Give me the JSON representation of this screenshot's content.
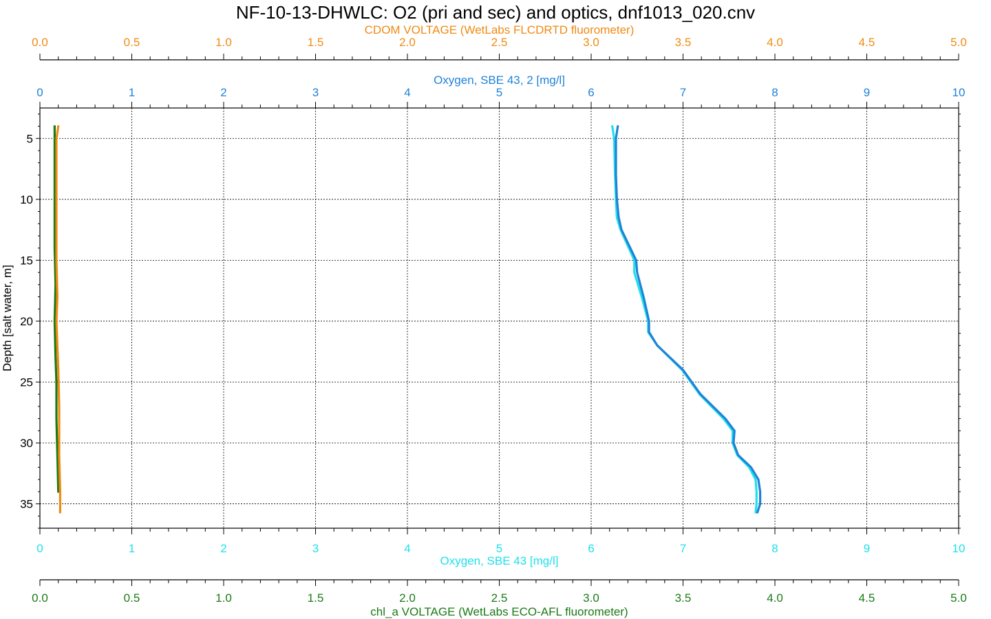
{
  "chart_data": {
    "type": "line",
    "title": "NF-10-13-DHWLC: O2 (pri and sec) and optics, dnf1013_020.cnv",
    "y_axis": {
      "label": "Depth [salt water, m]",
      "range": [
        2.5,
        37
      ],
      "inverted": true,
      "ticks": [
        5,
        10,
        15,
        20,
        25,
        30,
        35
      ]
    },
    "x_axes": [
      {
        "id": "cdom",
        "label": "CDOM VOLTAGE (WetLabs FLCDRTD fluorometer)",
        "position": "top-outer",
        "range": [
          0,
          5
        ],
        "ticks": [
          "0.0",
          "0.5",
          "1.0",
          "1.5",
          "2.0",
          "2.5",
          "3.0",
          "3.5",
          "4.0",
          "4.5",
          "5.0"
        ],
        "color": "#f08a12"
      },
      {
        "id": "oxy2",
        "label": "Oxygen, SBE 43, 2 [mg/l]",
        "position": "top-inner",
        "range": [
          0,
          10
        ],
        "ticks": [
          "0",
          "1",
          "2",
          "3",
          "4",
          "5",
          "6",
          "7",
          "8",
          "9",
          "10"
        ],
        "color": "#1f82d8"
      },
      {
        "id": "oxy1",
        "label": "Oxygen, SBE 43 [mg/l]",
        "position": "bottom-inner",
        "range": [
          0,
          10
        ],
        "ticks": [
          "0",
          "1",
          "2",
          "3",
          "4",
          "5",
          "6",
          "7",
          "8",
          "9",
          "10"
        ],
        "color": "#1ee0ec"
      },
      {
        "id": "chla",
        "label": "chl_a VOLTAGE (WetLabs ECO-AFL fluorometer)",
        "position": "bottom-outer",
        "range": [
          0,
          5
        ],
        "ticks": [
          "0.0",
          "0.5",
          "1.0",
          "1.5",
          "2.0",
          "2.5",
          "3.0",
          "3.5",
          "4.0",
          "4.5",
          "5.0"
        ],
        "color": "#1a7a14"
      }
    ],
    "grid": true,
    "series": [
      {
        "name": "Oxygen, SBE 43 [mg/l]",
        "axis": "oxy1",
        "color": "#1ee0ec",
        "points": [
          [
            6.23,
            4
          ],
          [
            6.25,
            5
          ],
          [
            6.26,
            8
          ],
          [
            6.27,
            10
          ],
          [
            6.28,
            11.5
          ],
          [
            6.32,
            12.5
          ],
          [
            6.47,
            15
          ],
          [
            6.47,
            16
          ],
          [
            6.55,
            18
          ],
          [
            6.62,
            20
          ],
          [
            6.62,
            20.9
          ],
          [
            6.72,
            22
          ],
          [
            6.99,
            24
          ],
          [
            7.18,
            26
          ],
          [
            7.44,
            28
          ],
          [
            7.54,
            29
          ],
          [
            7.54,
            30
          ],
          [
            7.59,
            31
          ],
          [
            7.72,
            32
          ],
          [
            7.79,
            33
          ],
          [
            7.8,
            34
          ],
          [
            7.8,
            35
          ],
          [
            7.79,
            35.7
          ]
        ]
      },
      {
        "name": "Oxygen, SBE 43, 2 [mg/l]",
        "axis": "oxy2",
        "color": "#1f82d8",
        "points": [
          [
            6.29,
            4
          ],
          [
            6.27,
            5
          ],
          [
            6.27,
            8
          ],
          [
            6.28,
            10
          ],
          [
            6.3,
            11.5
          ],
          [
            6.33,
            12.5
          ],
          [
            6.49,
            15
          ],
          [
            6.5,
            16
          ],
          [
            6.57,
            18
          ],
          [
            6.63,
            20
          ],
          [
            6.63,
            20.9
          ],
          [
            6.72,
            22
          ],
          [
            7.0,
            24
          ],
          [
            7.19,
            26
          ],
          [
            7.46,
            28
          ],
          [
            7.56,
            29
          ],
          [
            7.55,
            30
          ],
          [
            7.6,
            31
          ],
          [
            7.74,
            32
          ],
          [
            7.82,
            33
          ],
          [
            7.84,
            34
          ],
          [
            7.84,
            35
          ],
          [
            7.81,
            35.7
          ]
        ]
      },
      {
        "name": "chl_a VOLTAGE (WetLabs ECO-AFL fluorometer)",
        "axis": "chla",
        "color": "#1a7a14",
        "points": [
          [
            0.08,
            4
          ],
          [
            0.08,
            6
          ],
          [
            0.08,
            10
          ],
          [
            0.08,
            14
          ],
          [
            0.085,
            17
          ],
          [
            0.08,
            20
          ],
          [
            0.085,
            23
          ],
          [
            0.09,
            25
          ],
          [
            0.09,
            28
          ],
          [
            0.095,
            31
          ],
          [
            0.1,
            34
          ]
        ]
      },
      {
        "name": "CDOM VOLTAGE (WetLabs FLCDRTD fluorometer)",
        "axis": "cdom",
        "color": "#f08a12",
        "points": [
          [
            0.1,
            4
          ],
          [
            0.09,
            5
          ],
          [
            0.09,
            8
          ],
          [
            0.09,
            12
          ],
          [
            0.09,
            15
          ],
          [
            0.095,
            18
          ],
          [
            0.09,
            20
          ],
          [
            0.1,
            24
          ],
          [
            0.105,
            27
          ],
          [
            0.105,
            31
          ],
          [
            0.11,
            34
          ],
          [
            0.11,
            35.7
          ]
        ]
      }
    ]
  }
}
